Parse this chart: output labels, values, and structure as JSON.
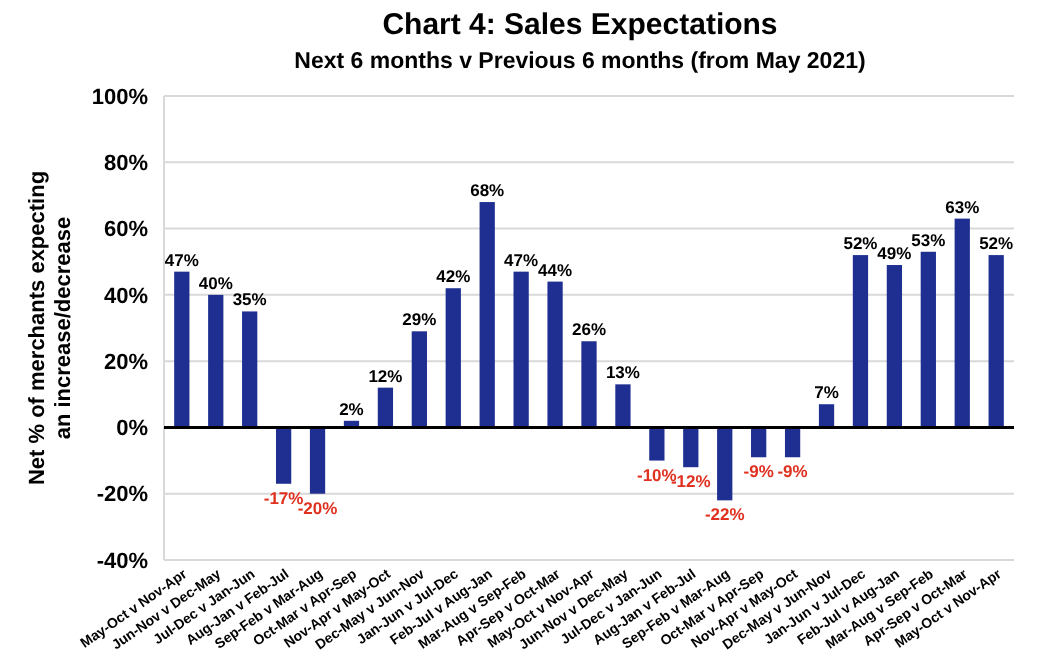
{
  "chart_data": {
    "type": "bar",
    "title": "Chart 4: Sales Expectations",
    "subtitle": "Next 6 months v Previous 6 months (from May 2021)",
    "ylabel": "Net % of merchants expecting an increase/decrease",
    "categories": [
      "May-Oct v Nov-Apr",
      "Jun-Nov v Dec-May",
      "Jul-Dec v Jan-Jun",
      "Aug-Jan v Feb-Jul",
      "Sep-Feb v Mar-Aug",
      "Oct-Mar v Apr-Sep",
      "Nov-Apr v May-Oct",
      "Dec-May v Jun-Nov",
      "Jan-Jun v Jul-Dec",
      "Feb-Jul v Aug-Jan",
      "Mar-Aug v Sep-Feb",
      "Apr-Sep v Oct-Mar",
      "May-Oct v Nov-Apr",
      "Jun-Nov v Dec-May",
      "Jul-Dec v Jan-Jun",
      "Aug-Jan v Feb-Jul",
      "Sep-Feb v Mar-Aug",
      "Oct-Mar v Apr-Sep",
      "Nov-Apr v May-Oct",
      "Dec-May v Jun-Nov",
      "Jan-Jun v Jul-Dec",
      "Feb-Jul v Aug-Jan",
      "Mar-Aug v Sep-Feb",
      "Apr-Sep v Oct-Mar",
      "May-Oct v Nov-Apr"
    ],
    "values": [
      47,
      40,
      35,
      -17,
      -20,
      2,
      12,
      29,
      42,
      68,
      47,
      44,
      26,
      13,
      -10,
      -12,
      -22,
      -9,
      -9,
      7,
      52,
      49,
      53,
      63,
      52
    ],
    "value_labels": [
      "47%",
      "40%",
      "35%",
      "-17%",
      "-20%",
      "2%",
      "12%",
      "29%",
      "42%",
      "68%",
      "47%",
      "44%",
      "26%",
      "13%",
      "-10%",
      "-12%",
      "-22%",
      "-9%",
      "-9%",
      "7%",
      "52%",
      "49%",
      "53%",
      "63%",
      "52%"
    ],
    "color": "#1f2f91",
    "ylim": [
      -40,
      100
    ],
    "yticks": [
      {
        "value": -40,
        "label": "-40%"
      },
      {
        "value": -20,
        "label": "-20%"
      },
      {
        "value": 0,
        "label": "0%"
      },
      {
        "value": 20,
        "label": "20%"
      },
      {
        "value": 40,
        "label": "40%"
      },
      {
        "value": 60,
        "label": "60%"
      },
      {
        "value": 80,
        "label": "80%"
      },
      {
        "value": 100,
        "label": "100%"
      }
    ],
    "grid": "y"
  }
}
